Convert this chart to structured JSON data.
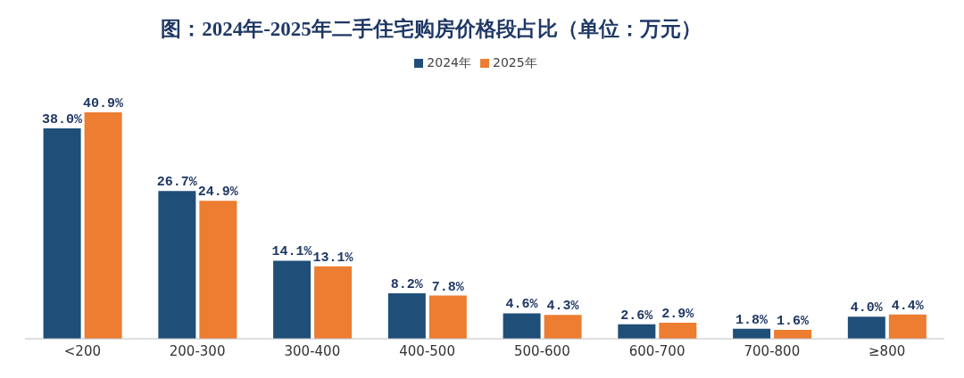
{
  "chart_data": {
    "type": "bar",
    "title": "图：2024年-2025年二手住宅购房价格段占比（单位：万元）",
    "categories": [
      "<200",
      "200-300",
      "300-400",
      "400-500",
      "500-600",
      "600-700",
      "700-800",
      "≥800"
    ],
    "series": [
      {
        "name": "2024年",
        "color": "#1f4e79",
        "values": [
          38.0,
          26.7,
          14.1,
          8.2,
          4.6,
          2.6,
          1.8,
          4.0
        ],
        "value_labels": [
          "38.0%",
          "26.7%",
          "14.1%",
          "8.2%",
          "4.6%",
          "2.6%",
          "1.8%",
          "4.0%"
        ]
      },
      {
        "name": "2025年",
        "color": "#ed7d31",
        "values": [
          40.9,
          24.9,
          13.1,
          7.8,
          4.3,
          2.9,
          1.6,
          4.4
        ],
        "value_labels": [
          "40.9%",
          "24.9%",
          "13.1%",
          "7.8%",
          "4.3%",
          "2.9%",
          "1.6%",
          "4.4%"
        ]
      }
    ],
    "legend": "top",
    "grid": false
  }
}
